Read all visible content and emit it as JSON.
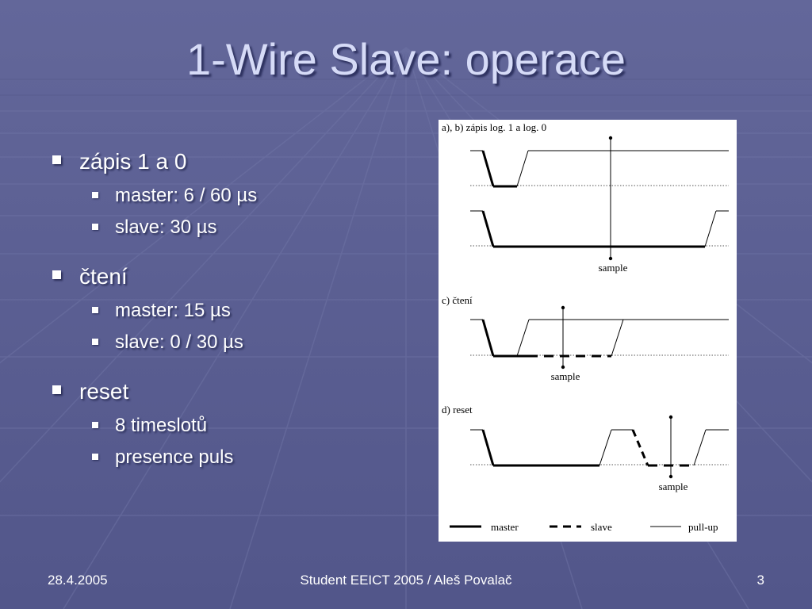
{
  "slide": {
    "title": "1-Wire Slave: operace",
    "bullets": [
      {
        "text": "zápis 1 a 0",
        "sub": [
          "master: 6 / 60 µs",
          "slave: 30 µs"
        ]
      },
      {
        "text": "čtení",
        "sub": [
          "master: 15 µs",
          "slave: 0 / 30 µs"
        ]
      },
      {
        "text": "reset",
        "sub": [
          "8 timeslotů",
          "presence puls"
        ]
      }
    ]
  },
  "diagram": {
    "label_ab": "a), b) zápis log. 1 a log. 0",
    "label_c": "c) čtení",
    "label_d": "d) reset",
    "sample_label": "sample",
    "legend": {
      "master": "master",
      "slave": "slave",
      "pullup": "pull-up"
    }
  },
  "footer": {
    "date": "28.4.2005",
    "center": "Student EEICT 2005 / Aleš Povalač",
    "page": "3"
  },
  "colors": {
    "background": "#5a5f8e",
    "title": "#d6dbf7",
    "text": "#ffffff"
  }
}
